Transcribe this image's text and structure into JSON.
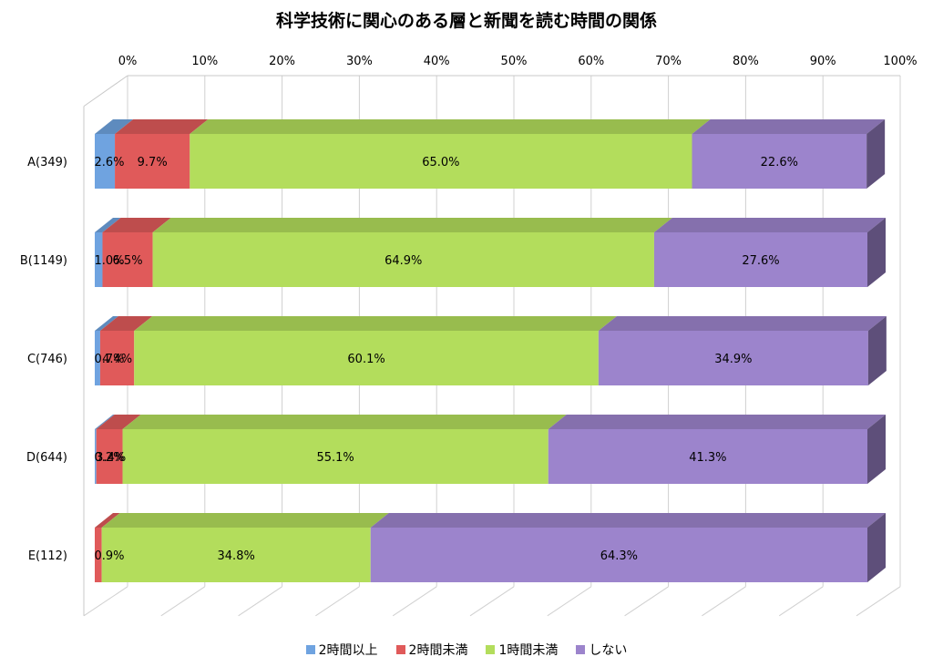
{
  "chart_data": {
    "type": "bar",
    "orientation": "horizontal",
    "stacked": "100%",
    "style": "3d",
    "title": "科学技術に関心のある層と新聞を読む時間の関係",
    "categories": [
      "A(349)",
      "B(1149)",
      "C(746)",
      "D(644)",
      "E(112)"
    ],
    "x_ticks": [
      "0%",
      "10%",
      "20%",
      "30%",
      "40%",
      "50%",
      "60%",
      "70%",
      "80%",
      "90%",
      "100%"
    ],
    "xlim": [
      0,
      100
    ],
    "grid": true,
    "legend_position": "bottom",
    "series": [
      {
        "name": "2時間以上",
        "color": "#6fa3e0",
        "values": [
          2.6,
          1.0,
          0.7,
          0.2,
          0.0
        ],
        "labels": [
          "2.6%",
          "1.0%",
          "0.7%",
          "0.2%",
          ""
        ]
      },
      {
        "name": "2時間未満",
        "color": "#e05a5a",
        "values": [
          9.7,
          6.5,
          4.4,
          3.4,
          0.9
        ],
        "labels": [
          "9.7%",
          "6.5%",
          "4.4%",
          "3.4%",
          "0.9%"
        ]
      },
      {
        "name": "1時間未満",
        "color": "#b3dd5c",
        "values": [
          65.0,
          64.9,
          60.1,
          55.1,
          34.8
        ],
        "labels": [
          "65.0%",
          "64.9%",
          "60.1%",
          "55.1%",
          "34.8%"
        ]
      },
      {
        "name": "しない",
        "color": "#9c84cc",
        "values": [
          22.6,
          27.6,
          34.9,
          41.3,
          64.3
        ],
        "labels": [
          "22.6%",
          "27.6%",
          "34.9%",
          "41.3%",
          "64.3%"
        ]
      }
    ]
  }
}
